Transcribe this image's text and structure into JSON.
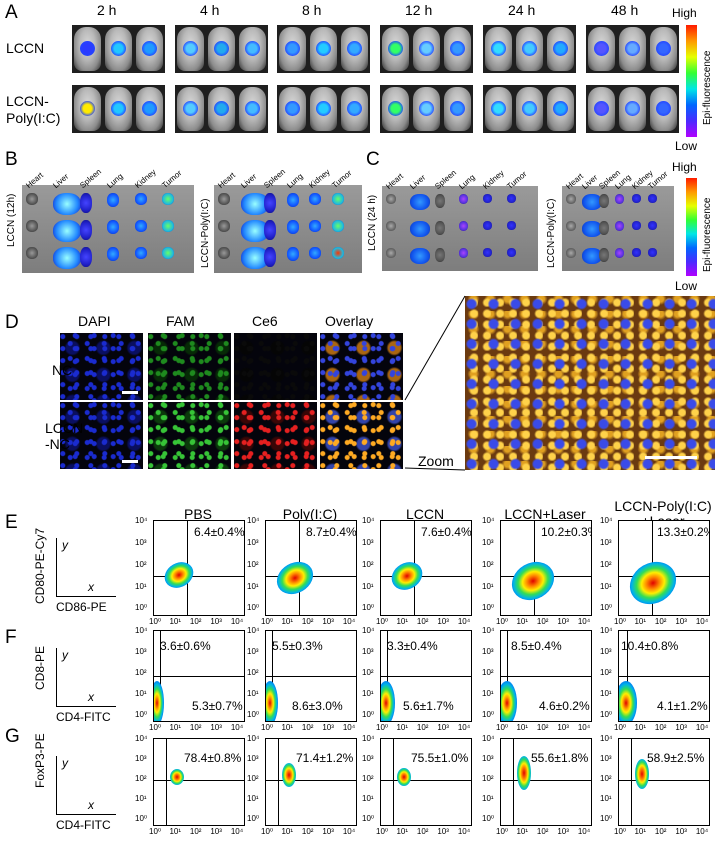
{
  "panels": {
    "A": "A",
    "B": "B",
    "C": "C",
    "D": "D",
    "E": "E",
    "F": "F",
    "G": "G"
  },
  "panel_a": {
    "timepoints": [
      "2 h",
      "4 h",
      "8 h",
      "12 h",
      "24 h",
      "48 h"
    ],
    "rows": [
      "LCCN",
      "LCCN-\nPoly(I:C)"
    ],
    "colorbar": {
      "high": "High",
      "low": "Low",
      "label": "Epi-fluorescence"
    }
  },
  "panel_b": {
    "organs": [
      "Heart",
      "Liver",
      "Spleen",
      "Lung",
      "Kidney",
      "Tumor"
    ],
    "left_label": "LCCN  (12h)",
    "right_label": "LCCN-Poly(I:C)"
  },
  "panel_c": {
    "organs": [
      "Heart",
      "Liver",
      "Spleen",
      "Lung",
      "Kidney",
      "Tumor"
    ],
    "left_label": "LCCN  (24 h)",
    "right_label": "LCCN-Poly(I:C)",
    "colorbar": {
      "high": "High",
      "low": "Low",
      "label": "Epi-fluorescence"
    }
  },
  "panel_d": {
    "channels": [
      "DAPI",
      "FAM",
      "Ce6",
      "Overlay"
    ],
    "rows": [
      "NC",
      "LCCN\n-NC"
    ],
    "zoom_label": "Zoom"
  },
  "flow": {
    "groups": [
      "PBS",
      "Poly(I:C)",
      "LCCN",
      "LCCN+Laser",
      "LCCN-Poly(I:C)\n+Laser"
    ],
    "ticks_x": [
      "10⁰",
      "10¹",
      "10²",
      "10³",
      "10⁴"
    ],
    "ticks_y": [
      "10⁴",
      "10³",
      "10²",
      "10¹",
      "10⁰"
    ],
    "axis_x": "x",
    "axis_y": "y",
    "E": {
      "ylabel": "CD80-PE-Cy7",
      "xlabel": "CD86-PE",
      "values": [
        "6.4±0.4%",
        "8.7±0.4%",
        "7.6±0.4%",
        "10.2±0.3%",
        "13.3±0.2%"
      ]
    },
    "F": {
      "ylabel": "CD8-PE",
      "xlabel": "CD4-FITC",
      "upper": [
        "3.6±0.6%",
        "5.5±0.3%",
        "3.3±0.4%",
        "8.5±0.4%",
        "10.4±0.8%"
      ],
      "lower": [
        "5.3±0.7%",
        "8.6±3.0%",
        "5.6±1.7%",
        "4.6±0.2%",
        "4.1±1.2%"
      ]
    },
    "G": {
      "ylabel": "FoxP3-PE",
      "xlabel": "CD4-FITC",
      "values": [
        "78.4±0.8%",
        "71.4±1.2%",
        "75.5±1.0%",
        "55.6±1.8%",
        "58.9±2.5%"
      ]
    }
  }
}
